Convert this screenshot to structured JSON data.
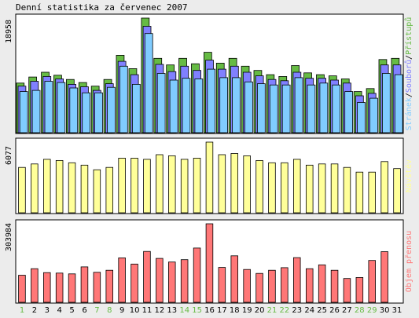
{
  "chart_data": {
    "type": "bar",
    "title": "Denní statistika za červenec 2007",
    "categories": [
      "1",
      "2",
      "3",
      "4",
      "5",
      "6",
      "7",
      "8",
      "9",
      "10",
      "11",
      "12",
      "13",
      "14",
      "15",
      "16",
      "17",
      "18",
      "19",
      "20",
      "21",
      "22",
      "23",
      "24",
      "25",
      "26",
      "27",
      "28",
      "29",
      "30",
      "31"
    ],
    "weekend_days": [
      "1",
      "7",
      "8",
      "14",
      "15",
      "21",
      "22",
      "28",
      "29"
    ],
    "panels": [
      {
        "id": "access",
        "ymax_label": "18958",
        "ylim": [
          0,
          18958
        ],
        "side_label_parts": [
          "Stránek",
          "/",
          "Souborů",
          "/",
          "Přístupů"
        ],
        "series": [
          {
            "name": "Přístupů",
            "values": [
              8200,
              9200,
              10000,
              9500,
              8800,
              8300,
              7700,
              8800,
              12800,
              10600,
              18958,
              12300,
              11200,
              12300,
              11400,
              13300,
              11500,
              12300,
              11000,
              10300,
              9600,
              9300,
              11100,
              9900,
              9600,
              9400,
              8900,
              6800,
              7300,
              12100,
              12300
            ]
          },
          {
            "name": "Souborů",
            "values": [
              7700,
              8500,
              9300,
              8900,
              8000,
              7600,
              7000,
              8100,
              11800,
              9600,
              17600,
              11300,
              10100,
              11000,
              10300,
              12000,
              10500,
              11000,
              10000,
              9400,
              8800,
              8600,
              10000,
              9000,
              9000,
              8700,
              8200,
              6100,
              6500,
              11200,
              11200
            ]
          },
          {
            "name": "Stránek",
            "values": [
              6800,
              7000,
              8500,
              8300,
              7400,
              6600,
              6600,
              7500,
              11000,
              8000,
              16400,
              9800,
              8700,
              9000,
              8900,
              10500,
              9100,
              9100,
              8400,
              8100,
              7900,
              7900,
              9100,
              7900,
              8200,
              7900,
              6800,
              5000,
              5700,
              9800,
              9600
            ]
          }
        ],
        "colors": {
          "Přístupů": "#66BB44",
          "Souborů": "#8080FF",
          "Stránek": "#80CCFF"
        }
      },
      {
        "id": "visits",
        "ymax_label": "6077",
        "ylim": [
          0,
          6077
        ],
        "side_label_parts": [
          "Návštěv"
        ],
        "series": [
          {
            "name": "Návštěv",
            "values": [
              3900,
              4200,
              4600,
              4500,
              4300,
              4100,
              3700,
              3900,
              4700,
              4700,
              4600,
              5000,
              4900,
              4600,
              4700,
              6077,
              5000,
              5100,
              4900,
              4500,
              4300,
              4300,
              4600,
              4100,
              4200,
              4200,
              3900,
              3500,
              3500,
              4400,
              3800
            ]
          }
        ],
        "colors": {
          "Návštěv": "#FFFF99"
        }
      },
      {
        "id": "traffic",
        "ymax_label": "303984",
        "ylim": [
          0,
          303984
        ],
        "side_label_parts": [
          "Objem přenosu"
        ],
        "series": [
          {
            "name": "Objem přenosu",
            "values": [
              105000,
              130000,
              115000,
              113000,
              110000,
              137000,
              116000,
              124000,
              172000,
              148000,
              197000,
              170000,
              156000,
              165000,
              210000,
              303984,
              135000,
              180000,
              127000,
              112000,
              124000,
              134000,
              173000,
              130000,
              145000,
              124000,
              92000,
              96000,
              162000,
              196000,
              0
            ]
          }
        ],
        "colors": {
          "Objem přenosu": "#FF7777"
        }
      }
    ],
    "side_label_colors": [
      "#80CCFF",
      "#000000",
      "#8080FF",
      "#000000",
      "#66BB44"
    ],
    "grid": false,
    "legend": "right-vertical"
  }
}
